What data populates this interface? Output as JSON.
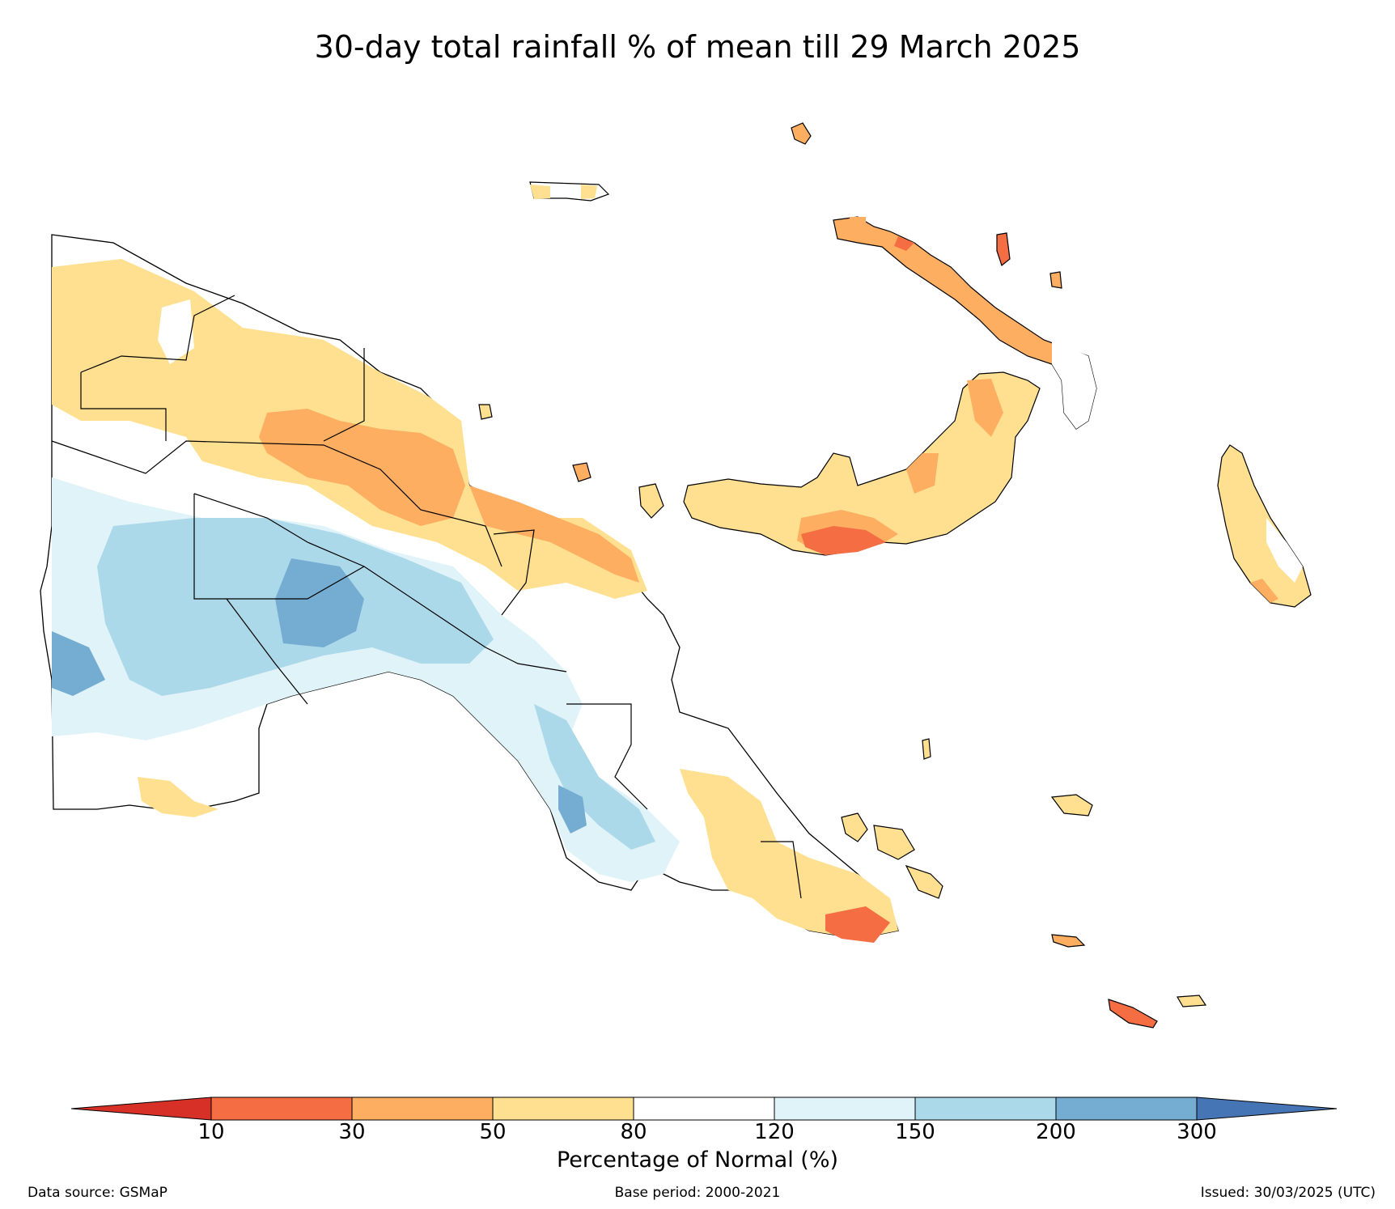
{
  "title": "30-day total rainfall % of mean till 29 March 2025",
  "legend": {
    "title": "Percentage of Normal (%)",
    "ticks": [
      "10",
      "30",
      "50",
      "80",
      "120",
      "150",
      "200",
      "300"
    ],
    "colors": {
      "under_10": "#d73027",
      "10_30": "#f46d43",
      "30_50": "#fdae61",
      "50_80": "#fee090",
      "80_120": "#ffffff",
      "120_150": "#e0f3f8",
      "150_200": "#abd9e9",
      "200_300": "#74add1",
      "over_300": "#4575b4"
    }
  },
  "footer": {
    "source": "Data source: GSMaP",
    "base": "Base period: 2000-2021",
    "issued": "Issued: 30/03/2025 (UTC)"
  }
}
